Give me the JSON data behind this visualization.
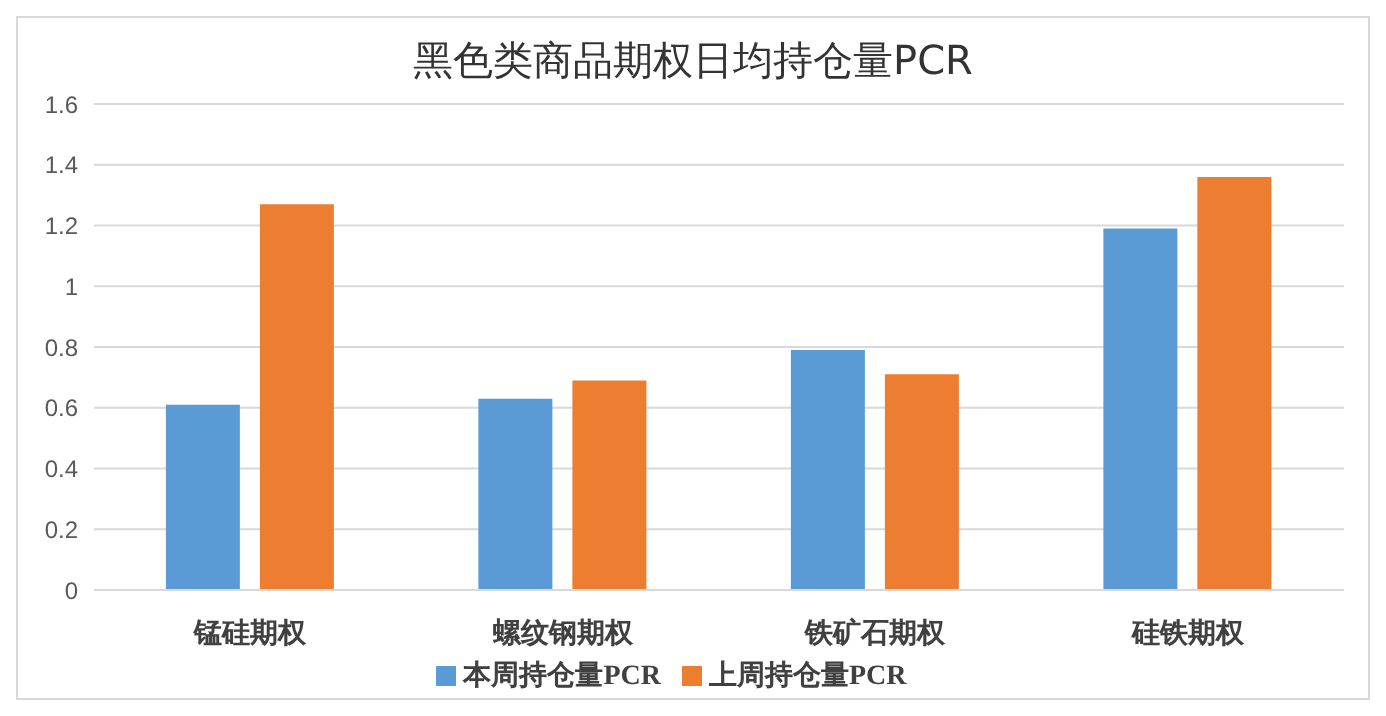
{
  "chart_data": {
    "type": "bar",
    "title": "黑色类商品期权日均持仓量PCR",
    "categories": [
      "锰硅期权",
      "螺纹钢期权",
      "铁矿石期权",
      "硅铁期权"
    ],
    "series": [
      {
        "name": "本周持仓量PCR",
        "color": "#5b9bd5",
        "values": [
          0.61,
          0.63,
          0.79,
          1.19
        ]
      },
      {
        "name": "上周持仓量PCR",
        "color": "#ed7d31",
        "values": [
          1.27,
          0.69,
          0.71,
          1.36
        ]
      }
    ],
    "ylim": [
      0,
      1.6
    ],
    "yticks": [
      0,
      0.2,
      0.4,
      0.6,
      0.8,
      1,
      1.2,
      1.4,
      1.6
    ],
    "grid": "y",
    "legend": "bottom"
  }
}
